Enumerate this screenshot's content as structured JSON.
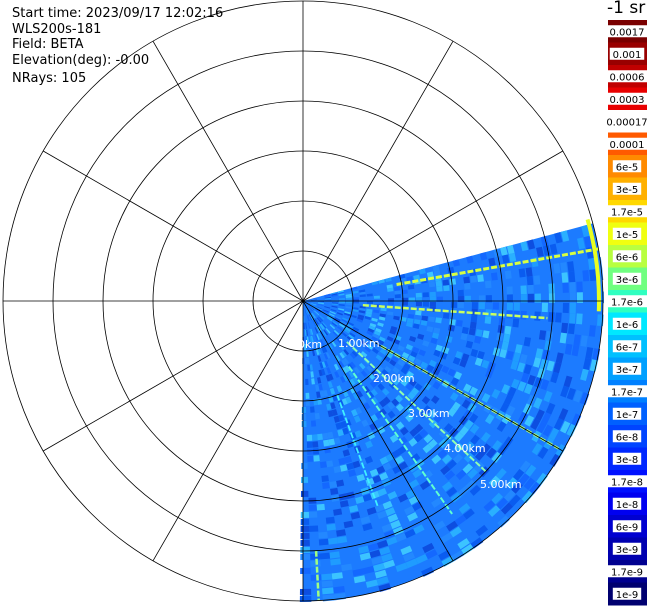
{
  "info": {
    "start_time": "Start time: 2023/09/17 12:02:16",
    "instrument": "WLS200s-181",
    "field": "Field: BETA",
    "elevation": "Elevation(deg): -0.00",
    "nrays": "NRays: 105"
  },
  "colorbar": {
    "unit_label": "-1 sr",
    "labels": [
      "0.0017",
      "0.001",
      "0.0006",
      "0.0003",
      "0.00017",
      "0.0001",
      "6e-5",
      "3e-5",
      "1.7e-5",
      "1e-5",
      "6e-6",
      "3e-6",
      "1.7e-6",
      "1e-6",
      "6e-7",
      "3e-7",
      "1.7e-7",
      "1e-7",
      "6e-8",
      "3e-8",
      "1.7e-8",
      "1e-8",
      "6e-9",
      "3e-9",
      "1.7e-9",
      "1e-9"
    ],
    "colors": [
      "#7a0000",
      "#990000",
      "#c00000",
      "#e80000",
      "#ffffff",
      "#ff5a00",
      "#ff8a00",
      "#ffb000",
      "#ffd800",
      "#f0ff10",
      "#b8ff40",
      "#70ff80",
      "#30ffc0",
      "#00e8ff",
      "#00c0ff",
      "#00a0ff",
      "#0080ff",
      "#0060ff",
      "#0044ff",
      "#0028ff",
      "#0010ff",
      "#0000f0",
      "#0000d0",
      "#0000b0",
      "#00008f",
      "#000070"
    ]
  },
  "range_labels": [
    "0km",
    "1.00km",
    "2.00km",
    "3.00km",
    "4.00km",
    "5.00km"
  ],
  "colors": {
    "scan_base": "#1c7bff",
    "grid": "#000000"
  }
}
